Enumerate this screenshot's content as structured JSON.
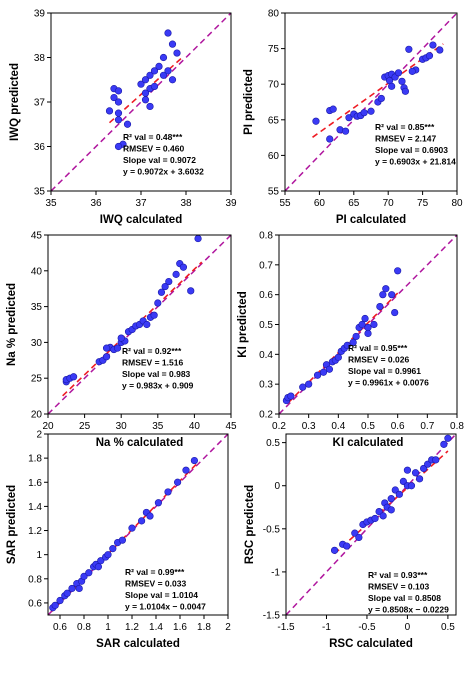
{
  "colors": {
    "points": "#3a3af5",
    "point_edge": "#1a1aa8",
    "fit": "#ee1c24",
    "identity": "#b0169e"
  },
  "chart_data": [
    {
      "type": "scatter",
      "id": "iwq",
      "xlabel": "IWQ calculated",
      "ylabel": "IWQ predicted",
      "xlim": [
        35,
        39
      ],
      "ylim": [
        35,
        39
      ],
      "xticks": [
        35,
        36,
        37,
        38,
        39
      ],
      "yticks": [
        35,
        36,
        37,
        38,
        39
      ],
      "fit": {
        "slope": 0.9072,
        "intercept": 3.6032,
        "x_range": [
          36.3,
          37.9
        ]
      },
      "annotations": [
        "R² val = 0.48***",
        "RMSEV = 0.460",
        "Slope val = 0.9072",
        "y = 0.9072x + 3.6032"
      ],
      "points": [
        [
          36.4,
          37.3
        ],
        [
          36.5,
          37.25
        ],
        [
          36.4,
          37.1
        ],
        [
          36.5,
          37.0
        ],
        [
          36.3,
          36.8
        ],
        [
          36.5,
          36.75
        ],
        [
          36.5,
          36.6
        ],
        [
          36.6,
          36.05
        ],
        [
          36.5,
          36.0
        ],
        [
          36.7,
          36.5
        ],
        [
          37.0,
          37.4
        ],
        [
          37.1,
          37.5
        ],
        [
          37.2,
          37.6
        ],
        [
          37.2,
          37.3
        ],
        [
          37.3,
          37.7
        ],
        [
          37.4,
          37.8
        ],
        [
          37.5,
          38.0
        ],
        [
          37.6,
          38.55
        ],
        [
          37.7,
          38.3
        ],
        [
          37.8,
          38.1
        ],
        [
          37.1,
          37.05
        ],
        [
          37.2,
          36.9
        ],
        [
          37.3,
          37.35
        ],
        [
          37.5,
          37.6
        ],
        [
          37.6,
          37.7
        ],
        [
          37.7,
          37.5
        ],
        [
          37.1,
          37.2
        ]
      ]
    },
    {
      "type": "scatter",
      "id": "pi",
      "xlabel": "PI calculated",
      "ylabel": "PI predicted",
      "xlim": [
        55,
        80
      ],
      "ylim": [
        55,
        80
      ],
      "xticks": [
        55,
        60,
        65,
        70,
        75,
        80
      ],
      "yticks": [
        55,
        60,
        65,
        70,
        75,
        80
      ],
      "fit": {
        "slope": 0.6903,
        "intercept": 21.814,
        "x_range": [
          59,
          78
        ]
      },
      "annotations": [
        "R² val = 0.85***",
        "RMSEV = 2.147",
        "Slope val = 0.6903",
        "y = 0.6903x + 21.814"
      ],
      "points": [
        [
          59.5,
          64.8
        ],
        [
          61.5,
          66.3
        ],
        [
          62.0,
          66.5
        ],
        [
          61.5,
          62.3
        ],
        [
          63.0,
          63.6
        ],
        [
          63.8,
          63.4
        ],
        [
          64.3,
          65.3
        ],
        [
          65.0,
          65.8
        ],
        [
          65.5,
          65.5
        ],
        [
          66.0,
          65.6
        ],
        [
          66.5,
          66.0
        ],
        [
          67.5,
          66.2
        ],
        [
          68.5,
          67.5
        ],
        [
          69.0,
          68.0
        ],
        [
          69.5,
          71.0
        ],
        [
          70.0,
          71.2
        ],
        [
          70.2,
          70.5
        ],
        [
          70.5,
          71.4
        ],
        [
          71.0,
          71.0
        ],
        [
          71.5,
          71.6
        ],
        [
          72.0,
          70.4
        ],
        [
          72.3,
          69.5
        ],
        [
          72.5,
          69.0
        ],
        [
          73.0,
          74.9
        ],
        [
          74.0,
          72.0
        ],
        [
          75.0,
          73.5
        ],
        [
          75.5,
          73.7
        ],
        [
          76.0,
          74.0
        ],
        [
          76.5,
          75.5
        ],
        [
          77.5,
          74.8
        ],
        [
          70.5,
          69.7
        ],
        [
          73.5,
          71.8
        ]
      ]
    },
    {
      "type": "scatter",
      "id": "na",
      "xlabel": "Na % calculated",
      "ylabel": "Na % predicted",
      "xlim": [
        20,
        45
      ],
      "ylim": [
        20,
        45
      ],
      "xticks": [
        20,
        25,
        30,
        35,
        40,
        45
      ],
      "yticks": [
        20,
        25,
        30,
        35,
        40,
        45
      ],
      "fit": {
        "slope": 0.983,
        "intercept": 0.909,
        "x_range": [
          22,
          41
        ]
      },
      "annotations": [
        "R² val = 0.92***",
        "RMSEV = 1.516",
        "Slope val = 0.983",
        "y = 0.983x + 0.909"
      ],
      "points": [
        [
          22.5,
          24.5
        ],
        [
          22.5,
          24.8
        ],
        [
          23.0,
          25.0
        ],
        [
          23.5,
          25.2
        ],
        [
          27.0,
          27.3
        ],
        [
          27.5,
          27.5
        ],
        [
          28.0,
          28.0
        ],
        [
          28.5,
          29.3
        ],
        [
          29.0,
          29.0
        ],
        [
          29.5,
          29.2
        ],
        [
          30.0,
          30.0
        ],
        [
          30.5,
          30.2
        ],
        [
          31.0,
          31.5
        ],
        [
          31.5,
          31.8
        ],
        [
          32.0,
          32.3
        ],
        [
          32.5,
          32.5
        ],
        [
          33.0,
          33.0
        ],
        [
          33.5,
          32.5
        ],
        [
          34.0,
          33.5
        ],
        [
          34.5,
          33.8
        ],
        [
          35.0,
          35.5
        ],
        [
          35.5,
          37.0
        ],
        [
          36.0,
          37.8
        ],
        [
          36.5,
          38.5
        ],
        [
          37.5,
          39.5
        ],
        [
          38.0,
          41.0
        ],
        [
          38.5,
          40.5
        ],
        [
          39.5,
          37.2
        ],
        [
          40.5,
          44.5
        ],
        [
          28.0,
          29.2
        ],
        [
          30.0,
          30.6
        ]
      ]
    },
    {
      "type": "scatter",
      "id": "ki",
      "xlabel": "KI calculated",
      "ylabel": "KI predicted",
      "xlim": [
        0.2,
        0.8
      ],
      "ylim": [
        0.2,
        0.8
      ],
      "xticks": [
        0.2,
        0.3,
        0.4,
        0.5,
        0.6,
        0.7,
        0.8
      ],
      "yticks": [
        0.2,
        0.3,
        0.4,
        0.5,
        0.6,
        0.7,
        0.8
      ],
      "fit": {
        "slope": 0.9961,
        "intercept": 0.0076,
        "x_range": [
          0.23,
          0.6
        ]
      },
      "annotations": [
        "R² val = 0.95***",
        "RMSEV = 0.026",
        "Slope val = 0.9961",
        "y = 0.9961x + 0.0076"
      ],
      "points": [
        [
          0.225,
          0.245
        ],
        [
          0.23,
          0.255
        ],
        [
          0.24,
          0.26
        ],
        [
          0.28,
          0.29
        ],
        [
          0.3,
          0.3
        ],
        [
          0.33,
          0.33
        ],
        [
          0.35,
          0.34
        ],
        [
          0.36,
          0.365
        ],
        [
          0.37,
          0.35
        ],
        [
          0.38,
          0.375
        ],
        [
          0.39,
          0.38
        ],
        [
          0.4,
          0.39
        ],
        [
          0.41,
          0.41
        ],
        [
          0.42,
          0.42
        ],
        [
          0.43,
          0.43
        ],
        [
          0.45,
          0.44
        ],
        [
          0.46,
          0.46
        ],
        [
          0.47,
          0.49
        ],
        [
          0.48,
          0.5
        ],
        [
          0.49,
          0.52
        ],
        [
          0.5,
          0.49
        ],
        [
          0.52,
          0.5
        ],
        [
          0.54,
          0.56
        ],
        [
          0.55,
          0.6
        ],
        [
          0.56,
          0.62
        ],
        [
          0.58,
          0.6
        ],
        [
          0.6,
          0.68
        ],
        [
          0.59,
          0.54
        ],
        [
          0.5,
          0.47
        ]
      ]
    },
    {
      "type": "scatter",
      "id": "sar",
      "xlabel": "SAR calculated",
      "ylabel": "SAR predicted",
      "xlim": [
        0.5,
        2.0
      ],
      "ylim": [
        0.5,
        2.0
      ],
      "xticks": [
        0.6,
        0.8,
        1.0,
        1.2,
        1.4,
        1.6,
        1.8,
        2.0
      ],
      "yticks": [
        0.6,
        0.8,
        1.0,
        1.2,
        1.4,
        1.6,
        1.8,
        2.0
      ],
      "fit": {
        "slope": 1.0104,
        "intercept": -0.0047,
        "x_range": [
          0.53,
          1.75
        ]
      },
      "annotations": [
        "R² val = 0.99***",
        "RMSEV = 0.033",
        "Slope val = 1.0104",
        "y = 1.0104x − 0.0047"
      ],
      "points": [
        [
          0.54,
          0.56
        ],
        [
          0.56,
          0.58
        ],
        [
          0.6,
          0.62
        ],
        [
          0.64,
          0.66
        ],
        [
          0.66,
          0.68
        ],
        [
          0.7,
          0.72
        ],
        [
          0.74,
          0.76
        ],
        [
          0.78,
          0.78
        ],
        [
          0.8,
          0.82
        ],
        [
          0.84,
          0.85
        ],
        [
          0.88,
          0.9
        ],
        [
          0.9,
          0.92
        ],
        [
          0.94,
          0.95
        ],
        [
          0.98,
          0.98
        ],
        [
          1.0,
          1.0
        ],
        [
          1.04,
          1.05
        ],
        [
          1.08,
          1.1
        ],
        [
          1.12,
          1.12
        ],
        [
          1.2,
          1.22
        ],
        [
          1.28,
          1.28
        ],
        [
          1.32,
          1.35
        ],
        [
          1.35,
          1.32
        ],
        [
          1.42,
          1.43
        ],
        [
          1.5,
          1.52
        ],
        [
          1.58,
          1.6
        ],
        [
          1.65,
          1.7
        ],
        [
          1.72,
          1.78
        ],
        [
          0.76,
          0.72
        ],
        [
          0.92,
          0.9
        ]
      ]
    },
    {
      "type": "scatter",
      "id": "rsc",
      "xlabel": "RSC calculated",
      "ylabel": "RSC predicted",
      "xlim": [
        -1.5,
        0.6
      ],
      "ylim": [
        -1.5,
        0.6
      ],
      "xticks": [
        -1.5,
        -1.0,
        -0.5,
        0.0,
        0.5
      ],
      "yticks": [
        -1.5,
        -1.0,
        -0.5,
        0.0,
        0.5
      ],
      "fit": {
        "slope": 0.8508,
        "intercept": -0.0229,
        "x_range": [
          -0.9,
          0.5
        ]
      },
      "annotations": [
        "R² val = 0.93***",
        "RMSEV = 0.103",
        "Slope val = 0.8508",
        "y = 0.8508x − 0.0229"
      ],
      "points": [
        [
          -0.9,
          -0.75
        ],
        [
          -0.8,
          -0.68
        ],
        [
          -0.75,
          -0.7
        ],
        [
          -0.65,
          -0.55
        ],
        [
          -0.55,
          -0.45
        ],
        [
          -0.5,
          -0.42
        ],
        [
          -0.45,
          -0.4
        ],
        [
          -0.4,
          -0.38
        ],
        [
          -0.35,
          -0.3
        ],
        [
          -0.3,
          -0.35
        ],
        [
          -0.28,
          -0.2
        ],
        [
          -0.25,
          -0.25
        ],
        [
          -0.2,
          -0.15
        ],
        [
          -0.15,
          -0.05
        ],
        [
          -0.1,
          -0.1
        ],
        [
          -0.05,
          0.05
        ],
        [
          0.0,
          0.0
        ],
        [
          0.0,
          0.18
        ],
        [
          0.05,
          0.0
        ],
        [
          0.1,
          0.15
        ],
        [
          0.2,
          0.2
        ],
        [
          0.25,
          0.25
        ],
        [
          0.3,
          0.3
        ],
        [
          0.35,
          0.3
        ],
        [
          0.45,
          0.48
        ],
        [
          0.5,
          0.55
        ],
        [
          -0.6,
          -0.6
        ],
        [
          -0.2,
          -0.28
        ],
        [
          0.15,
          0.08
        ]
      ]
    }
  ]
}
